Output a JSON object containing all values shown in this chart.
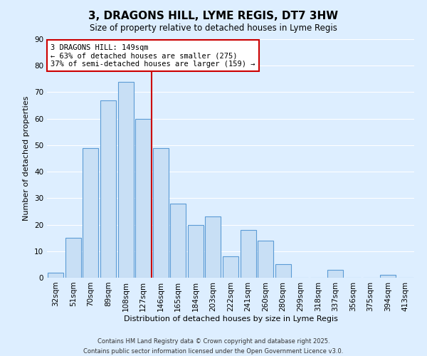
{
  "title": "3, DRAGONS HILL, LYME REGIS, DT7 3HW",
  "subtitle": "Size of property relative to detached houses in Lyme Regis",
  "xlabel": "Distribution of detached houses by size in Lyme Regis",
  "ylabel": "Number of detached properties",
  "bar_labels": [
    "32sqm",
    "51sqm",
    "70sqm",
    "89sqm",
    "108sqm",
    "127sqm",
    "146sqm",
    "165sqm",
    "184sqm",
    "203sqm",
    "222sqm",
    "241sqm",
    "260sqm",
    "280sqm",
    "299sqm",
    "318sqm",
    "337sqm",
    "356sqm",
    "375sqm",
    "394sqm",
    "413sqm"
  ],
  "bar_values": [
    2,
    15,
    49,
    67,
    74,
    60,
    49,
    28,
    20,
    23,
    8,
    18,
    14,
    5,
    0,
    0,
    3,
    0,
    0,
    1,
    0
  ],
  "bar_color": "#c8dff5",
  "bar_edge_color": "#5b9bd5",
  "vline_color": "#cc0000",
  "vline_pos": 5.5,
  "ylim": [
    0,
    90
  ],
  "annotation_title": "3 DRAGONS HILL: 149sqm",
  "annotation_line1": "← 63% of detached houses are smaller (275)",
  "annotation_line2": "37% of semi-detached houses are larger (159) →",
  "annotation_box_edge": "#cc0000",
  "footer1": "Contains HM Land Registry data © Crown copyright and database right 2025.",
  "footer2": "Contains public sector information licensed under the Open Government Licence v3.0.",
  "background_color": "#ddeeff",
  "grid_color": "#ffffff",
  "title_fontsize": 11,
  "subtitle_fontsize": 8.5,
  "axis_label_fontsize": 8,
  "tick_fontsize": 7.5,
  "footer_fontsize": 6,
  "annotation_fontsize": 7.5
}
